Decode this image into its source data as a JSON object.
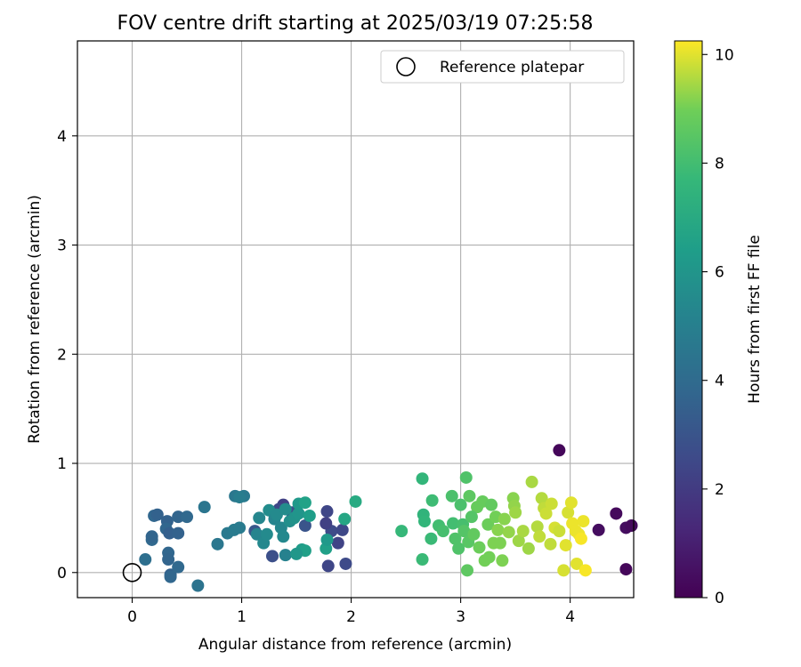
{
  "chart_data": {
    "type": "scatter",
    "title": "FOV centre drift starting at 2025/03/19 07:25:58",
    "xlabel": "Angular distance from reference (arcmin)",
    "ylabel": "Rotation from reference (arcmin)",
    "xlim": [
      -0.5,
      4.58
    ],
    "ylim": [
      -0.23,
      4.87
    ],
    "xticks": [
      0,
      1,
      2,
      3,
      4
    ],
    "yticks": [
      0,
      1,
      2,
      3,
      4
    ],
    "grid": true,
    "legend": {
      "placement": "upper right",
      "entries": [
        "Reference platepar"
      ]
    },
    "reference_point": {
      "x": 0,
      "y": 0,
      "label": "Reference platepar"
    },
    "colorbar": {
      "label": "Hours from first FF file",
      "min": 0,
      "max": 10.25,
      "ticks": [
        0,
        2,
        4,
        6,
        8,
        10
      ],
      "colormap": "viridis"
    },
    "points": [
      {
        "x": 3.9,
        "y": 1.12,
        "c": 0.2
      },
      {
        "x": 4.42,
        "y": 0.54,
        "c": 0.3
      },
      {
        "x": 4.26,
        "y": 0.39,
        "c": 0.4
      },
      {
        "x": 4.51,
        "y": 0.41,
        "c": 0.4
      },
      {
        "x": 4.56,
        "y": 0.43,
        "c": 0.3
      },
      {
        "x": 4.51,
        "y": 0.03,
        "c": 0.2
      },
      {
        "x": 1.38,
        "y": 0.62,
        "c": 2.2
      },
      {
        "x": 1.34,
        "y": 0.58,
        "c": 2.5
      },
      {
        "x": 1.28,
        "y": 0.15,
        "c": 2.8
      },
      {
        "x": 1.78,
        "y": 0.56,
        "c": 2.4
      },
      {
        "x": 1.82,
        "y": 0.38,
        "c": 2.6
      },
      {
        "x": 1.77,
        "y": 0.45,
        "c": 2.2
      },
      {
        "x": 1.92,
        "y": 0.39,
        "c": 2.5
      },
      {
        "x": 1.88,
        "y": 0.27,
        "c": 2.3
      },
      {
        "x": 1.95,
        "y": 0.08,
        "c": 2.6
      },
      {
        "x": 1.79,
        "y": 0.06,
        "c": 2.4
      },
      {
        "x": 1.58,
        "y": 0.43,
        "c": 3.0
      },
      {
        "x": 1.46,
        "y": 0.55,
        "c": 2.8
      },
      {
        "x": 1.12,
        "y": 0.38,
        "c": 3.1
      },
      {
        "x": 0.2,
        "y": 0.52,
        "c": 3.8
      },
      {
        "x": 0.23,
        "y": 0.53,
        "c": 3.6
      },
      {
        "x": 0.18,
        "y": 0.3,
        "c": 3.9
      },
      {
        "x": 0.18,
        "y": 0.33,
        "c": 3.7
      },
      {
        "x": 0.32,
        "y": 0.47,
        "c": 3.6
      },
      {
        "x": 0.31,
        "y": 0.4,
        "c": 3.8
      },
      {
        "x": 0.34,
        "y": 0.36,
        "c": 3.5
      },
      {
        "x": 0.42,
        "y": 0.51,
        "c": 3.7
      },
      {
        "x": 0.5,
        "y": 0.51,
        "c": 3.9
      },
      {
        "x": 0.42,
        "y": 0.36,
        "c": 3.6
      },
      {
        "x": 0.33,
        "y": 0.18,
        "c": 3.8
      },
      {
        "x": 0.33,
        "y": 0.12,
        "c": 3.7
      },
      {
        "x": 0.35,
        "y": -0.02,
        "c": 3.6
      },
      {
        "x": 0.35,
        "y": -0.04,
        "c": 3.8
      },
      {
        "x": 0.42,
        "y": 0.05,
        "c": 3.9
      },
      {
        "x": 0.12,
        "y": 0.12,
        "c": 4.2
      },
      {
        "x": 0.6,
        "y": -0.12,
        "c": 4.4
      },
      {
        "x": 0.66,
        "y": 0.6,
        "c": 4.5
      },
      {
        "x": 0.78,
        "y": 0.26,
        "c": 4.6
      },
      {
        "x": 0.87,
        "y": 0.36,
        "c": 4.7
      },
      {
        "x": 0.93,
        "y": 0.39,
        "c": 4.8
      },
      {
        "x": 0.94,
        "y": 0.7,
        "c": 4.6
      },
      {
        "x": 1.02,
        "y": 0.7,
        "c": 4.7
      },
      {
        "x": 0.98,
        "y": 0.69,
        "c": 4.9
      },
      {
        "x": 0.98,
        "y": 0.41,
        "c": 4.8
      },
      {
        "x": 1.14,
        "y": 0.35,
        "c": 5.2
      },
      {
        "x": 1.16,
        "y": 0.5,
        "c": 5.3
      },
      {
        "x": 1.2,
        "y": 0.27,
        "c": 5.4
      },
      {
        "x": 1.23,
        "y": 0.35,
        "c": 5.5
      },
      {
        "x": 1.25,
        "y": 0.57,
        "c": 5.6
      },
      {
        "x": 1.3,
        "y": 0.49,
        "c": 5.2
      },
      {
        "x": 1.32,
        "y": 0.53,
        "c": 5.5
      },
      {
        "x": 1.36,
        "y": 0.41,
        "c": 5.3
      },
      {
        "x": 1.38,
        "y": 0.33,
        "c": 5.4
      },
      {
        "x": 1.4,
        "y": 0.58,
        "c": 5.6
      },
      {
        "x": 1.4,
        "y": 0.16,
        "c": 5.1
      },
      {
        "x": 1.44,
        "y": 0.47,
        "c": 5.7
      },
      {
        "x": 1.48,
        "y": 0.5,
        "c": 5.9
      },
      {
        "x": 1.52,
        "y": 0.54,
        "c": 6.0
      },
      {
        "x": 1.52,
        "y": 0.63,
        "c": 6.2
      },
      {
        "x": 1.55,
        "y": 0.21,
        "c": 6.3
      },
      {
        "x": 1.58,
        "y": 0.2,
        "c": 6.5
      },
      {
        "x": 1.62,
        "y": 0.52,
        "c": 6.4
      },
      {
        "x": 1.58,
        "y": 0.64,
        "c": 6.6
      },
      {
        "x": 1.77,
        "y": 0.22,
        "c": 6.5
      },
      {
        "x": 1.78,
        "y": 0.3,
        "c": 6.2
      },
      {
        "x": 1.94,
        "y": 0.49,
        "c": 6.8
      },
      {
        "x": 2.04,
        "y": 0.65,
        "c": 7.0
      },
      {
        "x": 1.5,
        "y": 0.17,
        "c": 6.1
      },
      {
        "x": 2.46,
        "y": 0.38,
        "c": 7.7
      },
      {
        "x": 2.65,
        "y": 0.86,
        "c": 7.6
      },
      {
        "x": 2.65,
        "y": 0.12,
        "c": 7.8
      },
      {
        "x": 2.66,
        "y": 0.53,
        "c": 7.5
      },
      {
        "x": 2.67,
        "y": 0.47,
        "c": 7.6
      },
      {
        "x": 2.74,
        "y": 0.66,
        "c": 7.9
      },
      {
        "x": 2.73,
        "y": 0.31,
        "c": 7.8
      },
      {
        "x": 2.8,
        "y": 0.43,
        "c": 8.0
      },
      {
        "x": 2.84,
        "y": 0.38,
        "c": 8.1
      },
      {
        "x": 2.92,
        "y": 0.7,
        "c": 8.2
      },
      {
        "x": 2.93,
        "y": 0.45,
        "c": 8.0
      },
      {
        "x": 2.95,
        "y": 0.31,
        "c": 8.3
      },
      {
        "x": 3.0,
        "y": 0.62,
        "c": 8.2
      },
      {
        "x": 3.02,
        "y": 0.44,
        "c": 8.1
      },
      {
        "x": 3.03,
        "y": 0.38,
        "c": 8.4
      },
      {
        "x": 3.05,
        "y": 0.87,
        "c": 8.3
      },
      {
        "x": 3.07,
        "y": 0.28,
        "c": 8.5
      },
      {
        "x": 3.08,
        "y": 0.7,
        "c": 8.6
      },
      {
        "x": 3.06,
        "y": 0.02,
        "c": 8.6
      },
      {
        "x": 3.12,
        "y": 0.35,
        "c": 8.7
      },
      {
        "x": 3.15,
        "y": 0.6,
        "c": 8.8
      },
      {
        "x": 3.17,
        "y": 0.23,
        "c": 8.9
      },
      {
        "x": 3.2,
        "y": 0.65,
        "c": 8.8
      },
      {
        "x": 3.22,
        "y": 0.11,
        "c": 9.0
      },
      {
        "x": 3.25,
        "y": 0.44,
        "c": 8.9
      },
      {
        "x": 3.26,
        "y": 0.14,
        "c": 9.0
      },
      {
        "x": 3.3,
        "y": 0.27,
        "c": 9.1
      },
      {
        "x": 3.32,
        "y": 0.51,
        "c": 9.0
      },
      {
        "x": 3.34,
        "y": 0.39,
        "c": 9.2
      },
      {
        "x": 3.38,
        "y": 0.11,
        "c": 9.1
      },
      {
        "x": 3.4,
        "y": 0.49,
        "c": 9.2
      },
      {
        "x": 3.44,
        "y": 0.37,
        "c": 9.3
      },
      {
        "x": 3.48,
        "y": 0.68,
        "c": 9.2
      },
      {
        "x": 3.49,
        "y": 0.61,
        "c": 9.3
      },
      {
        "x": 3.5,
        "y": 0.55,
        "c": 9.4
      },
      {
        "x": 3.53,
        "y": 0.29,
        "c": 9.4
      },
      {
        "x": 3.57,
        "y": 0.38,
        "c": 9.5
      },
      {
        "x": 3.62,
        "y": 0.22,
        "c": 9.4
      },
      {
        "x": 3.65,
        "y": 0.83,
        "c": 9.5
      },
      {
        "x": 3.7,
        "y": 0.42,
        "c": 9.6
      },
      {
        "x": 3.72,
        "y": 0.33,
        "c": 9.7
      },
      {
        "x": 3.74,
        "y": 0.68,
        "c": 9.6
      },
      {
        "x": 3.76,
        "y": 0.59,
        "c": 9.7
      },
      {
        "x": 3.78,
        "y": 0.54,
        "c": 9.8
      },
      {
        "x": 3.82,
        "y": 0.26,
        "c": 9.7
      },
      {
        "x": 3.83,
        "y": 0.63,
        "c": 9.8
      },
      {
        "x": 3.86,
        "y": 0.41,
        "c": 9.9
      },
      {
        "x": 3.9,
        "y": 0.38,
        "c": 9.8
      },
      {
        "x": 3.94,
        "y": 0.02,
        "c": 9.9
      },
      {
        "x": 3.96,
        "y": 0.25,
        "c": 10.0
      },
      {
        "x": 3.98,
        "y": 0.55,
        "c": 9.9
      },
      {
        "x": 4.01,
        "y": 0.64,
        "c": 10.0
      },
      {
        "x": 4.02,
        "y": 0.45,
        "c": 10.1
      },
      {
        "x": 4.05,
        "y": 0.38,
        "c": 10.1
      },
      {
        "x": 4.06,
        "y": 0.08,
        "c": 10.0
      },
      {
        "x": 4.08,
        "y": 0.35,
        "c": 10.1
      },
      {
        "x": 4.1,
        "y": 0.31,
        "c": 10.2
      },
      {
        "x": 4.12,
        "y": 0.47,
        "c": 10.1
      },
      {
        "x": 4.14,
        "y": 0.02,
        "c": 10.2
      },
      {
        "x": 3.28,
        "y": 0.62,
        "c": 8.7
      },
      {
        "x": 3.1,
        "y": 0.51,
        "c": 8.4
      },
      {
        "x": 3.36,
        "y": 0.27,
        "c": 9.1
      },
      {
        "x": 2.98,
        "y": 0.22,
        "c": 8.3
      }
    ]
  }
}
